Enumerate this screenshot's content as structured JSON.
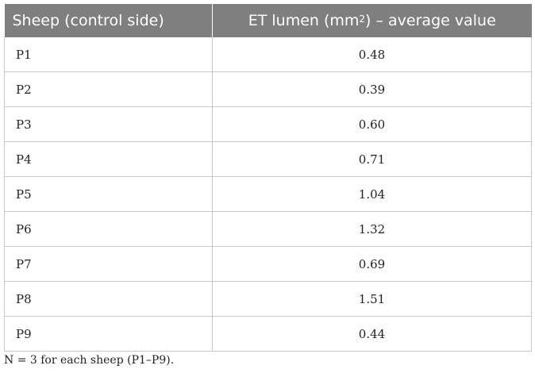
{
  "table": {
    "header": {
      "col1": "Sheep (control side)",
      "col2_prefix": "ET lumen (mm",
      "col2_sup": "2",
      "col2_suffix": ") – average value"
    },
    "rows": [
      {
        "sheep": "P1",
        "value": "0.48"
      },
      {
        "sheep": "P2",
        "value": "0.39"
      },
      {
        "sheep": "P3",
        "value": "0.60"
      },
      {
        "sheep": "P4",
        "value": "0.71"
      },
      {
        "sheep": "P5",
        "value": "1.04"
      },
      {
        "sheep": "P6",
        "value": "1.32"
      },
      {
        "sheep": "P7",
        "value": "0.69"
      },
      {
        "sheep": "P8",
        "value": "1.51"
      },
      {
        "sheep": "P9",
        "value": "0.44"
      }
    ]
  },
  "footnote": "N = 3 for each sheep (P1–P9)."
}
